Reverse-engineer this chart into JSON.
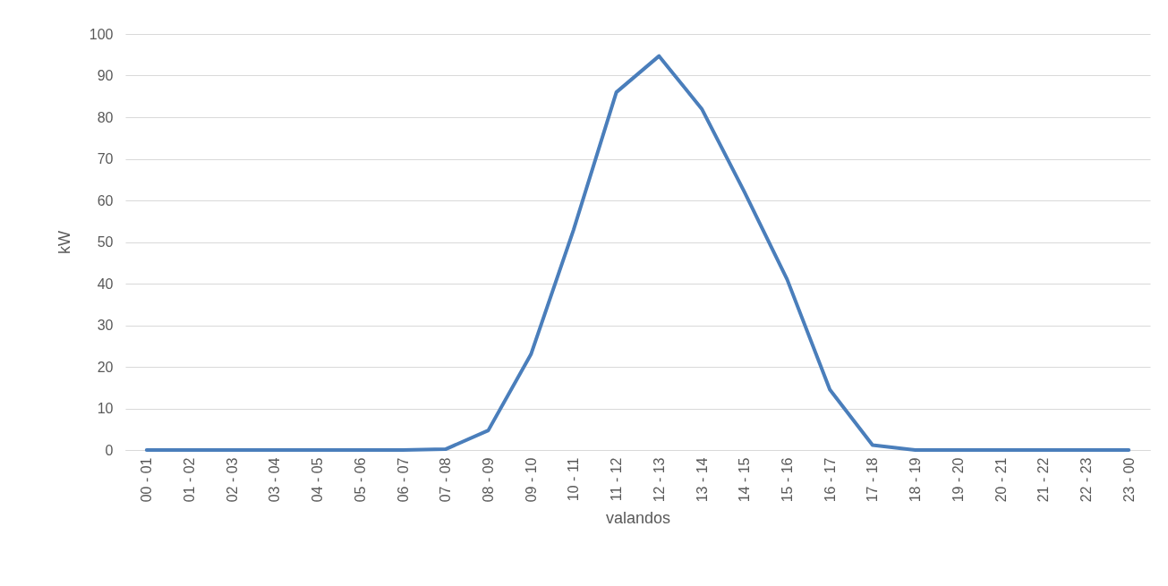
{
  "chart_data": {
    "type": "line",
    "xlabel": "valandos",
    "ylabel": "kW",
    "categories": [
      "00 - 01",
      "01 - 02",
      "02 - 03",
      "03 - 04",
      "04 - 05",
      "05 - 06",
      "06 - 07",
      "07 - 08",
      "08 - 09",
      "09 - 10",
      "10 - 11",
      "11 - 12",
      "12 - 13",
      "13 - 14",
      "14 - 15",
      "15 - 16",
      "16 - 17",
      "17 - 18",
      "18 - 19",
      "19 - 20",
      "20 - 21",
      "21 - 22",
      "22 - 23",
      "23 - 00"
    ],
    "series": [
      {
        "color": "#4a7ebb",
        "values": [
          0,
          0,
          0,
          0,
          0,
          0,
          0,
          0.2,
          4.7,
          23,
          53,
          86,
          94.7,
          82,
          62,
          41,
          14.5,
          1.2,
          0,
          0,
          0,
          0,
          0,
          0
        ]
      }
    ],
    "ylim": [
      0,
      100
    ],
    "yticks": [
      0,
      10,
      20,
      30,
      40,
      50,
      60,
      70,
      80,
      90,
      100
    ],
    "grid": "y",
    "marker": "none",
    "line_style": "solid"
  }
}
